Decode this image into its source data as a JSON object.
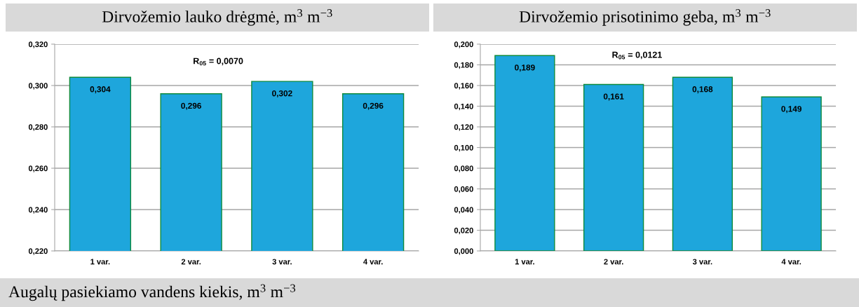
{
  "chart_data": [
    {
      "type": "bar",
      "title": "Dirvožemio lauko drėgmė, m$^{3}$ m$^{−3}$",
      "categories": [
        "1 var.",
        "2 var.",
        "3 var.",
        "4 var."
      ],
      "values": [
        0.304,
        0.296,
        0.302,
        0.296
      ],
      "value_labels": [
        "0,304",
        "0,296",
        "0,302",
        "0,296"
      ],
      "color": "#1ea6dc",
      "ylim": [
        0.22,
        0.32
      ],
      "yticks": [
        {
          "value": 0.22,
          "label": "0,220"
        },
        {
          "value": 0.24,
          "label": "0,240"
        },
        {
          "value": 0.26,
          "label": "0,260"
        },
        {
          "value": 0.28,
          "label": "0,280"
        },
        {
          "value": 0.3,
          "label": "0,300"
        },
        {
          "value": 0.32,
          "label": "0,320"
        }
      ],
      "grid": "y",
      "legend": false,
      "annotations": [
        "R$_{05}$ = 0,0070"
      ]
    },
    {
      "type": "bar",
      "title": "Dirvožemio prisotinimo geba, m$^{3}$ m$^{−3}$",
      "categories": [
        "1 var.",
        "2 var.",
        "3 var.",
        "4 var."
      ],
      "values": [
        0.189,
        0.161,
        0.168,
        0.149
      ],
      "value_labels": [
        "0,189",
        "0,161",
        "0,168",
        "0,149"
      ],
      "color": "#1ea6dc",
      "ylim": [
        0.0,
        0.2
      ],
      "yticks": [
        {
          "value": 0.0,
          "label": "0,000"
        },
        {
          "value": 0.02,
          "label": "0,020"
        },
        {
          "value": 0.04,
          "label": "0,040"
        },
        {
          "value": 0.06,
          "label": "0,060"
        },
        {
          "value": 0.08,
          "label": "0,080"
        },
        {
          "value": 0.1,
          "label": "0,100"
        },
        {
          "value": 0.12,
          "label": "0,120"
        },
        {
          "value": 0.14,
          "label": "0,140"
        },
        {
          "value": 0.16,
          "label": "0,160"
        },
        {
          "value": 0.18,
          "label": "0,180"
        },
        {
          "value": 0.2,
          "label": "0,200"
        }
      ],
      "grid": "y",
      "legend": false,
      "annotations": [
        "R$_{05}$ = 0,0121"
      ]
    },
    {
      "type": "other",
      "title": "Augalų pasiekiamo vandens kiekis, m$^{3}$ m$^{−3}$"
    }
  ]
}
